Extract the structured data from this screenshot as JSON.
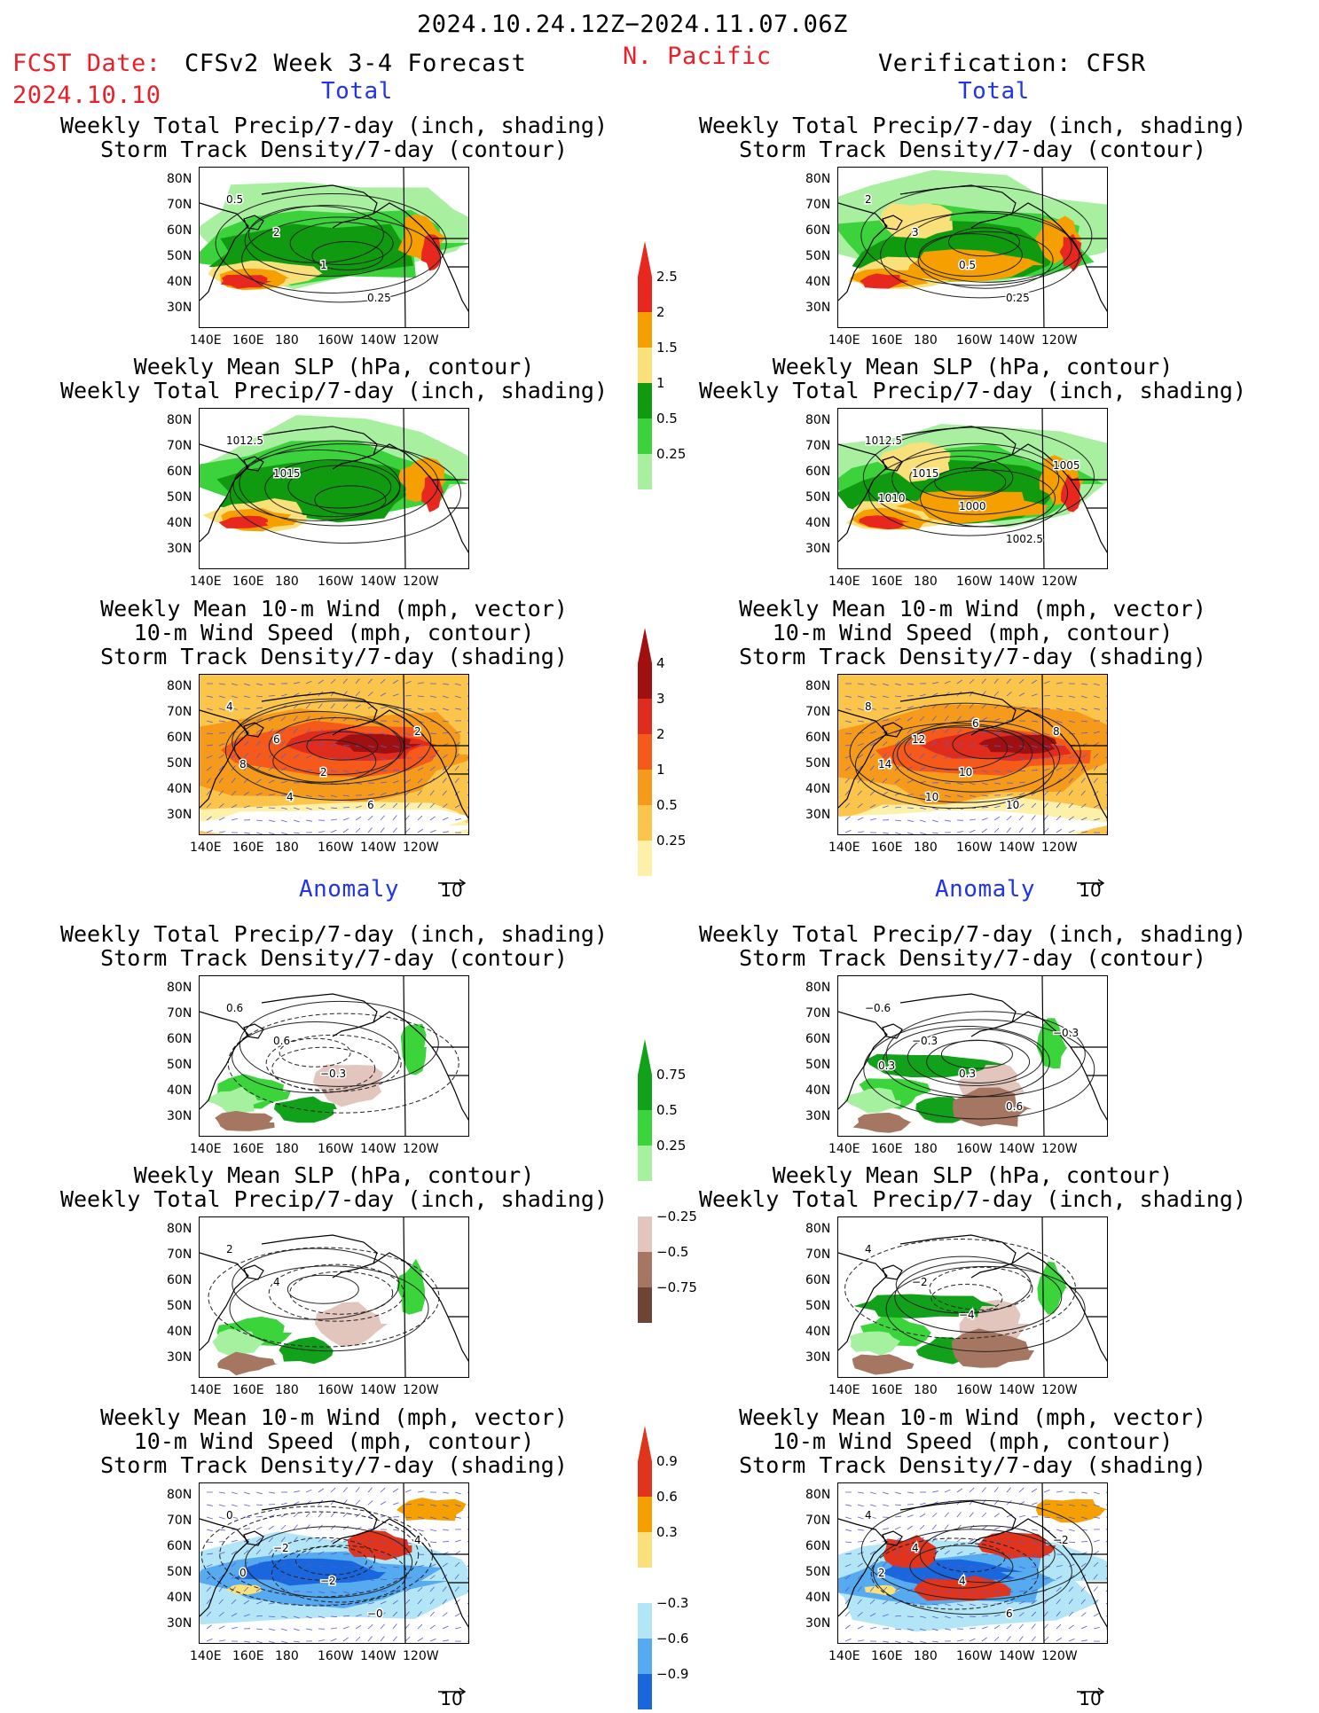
{
  "header": {
    "period": "2024.10.24.12Z−2024.11.07.06Z",
    "fcst_date_label": "FCST Date:",
    "fcst_date_value": "2024.10.10",
    "forecast_title": "CFSv2 Week 3-4 Forecast",
    "region": "N. Pacific",
    "verification": "Verification: CFSR"
  },
  "sections": {
    "total": "Total",
    "anomaly": "Anomaly"
  },
  "titles": {
    "precip_storm": [
      "Weekly Total Precip/7-day (inch, shading)",
      "Storm Track Density/7-day (contour)"
    ],
    "slp_precip": [
      "Weekly Mean SLP (hPa, contour)",
      "Weekly Total Precip/7-day (inch, shading)"
    ],
    "wind_storm": [
      "Weekly Mean 10-m Wind (mph, vector)",
      "10-m Wind Speed (mph, contour)",
      "Storm Track Density/7-day (shading)"
    ]
  },
  "axes": {
    "lat_ticks": [
      "80N",
      "70N",
      "60N",
      "50N",
      "40N",
      "30N"
    ],
    "lon_ticks": [
      "140E",
      "160E",
      "180",
      "160W",
      "140W",
      "120W"
    ]
  },
  "colorbars": {
    "precip_total": [
      "2.5",
      "2",
      "1.5",
      "1",
      "0.5",
      "0.25"
    ],
    "storm_total": [
      "4",
      "3",
      "2",
      "1",
      "0.5",
      "0.25"
    ],
    "precip_anom": [
      "0.75",
      "0.5",
      "0.25",
      "−0.25",
      "−0.5",
      "−0.75"
    ],
    "storm_anom": [
      "0.9",
      "0.6",
      "0.3",
      "−0.3",
      "−0.6",
      "−0.9"
    ],
    "colors": {
      "precip": [
        "#e8281e",
        "#f5a000",
        "#fae07a",
        "#0f9a10",
        "#3cd23c",
        "#a8f0a0"
      ],
      "storm": [
        "#a01010",
        "#e02c1c",
        "#f55a1a",
        "#f59a1a",
        "#fbc44a",
        "#fdf0a8"
      ],
      "anom_precip_pos": [
        "#11a11a",
        "#3bd43b",
        "#a6f19f"
      ],
      "anom_precip_neg": [
        "#e2c6bd",
        "#a57662",
        "#6e4534"
      ],
      "anom_storm_pos": [
        "#e0341c",
        "#f5a000",
        "#fae07a"
      ],
      "anom_storm_neg": [
        "#b2e6f7",
        "#55aaf0",
        "#1a66dd"
      ]
    }
  },
  "reference_vector": "10",
  "contour_labels": {
    "fc_precip_storm": [
      "0.5",
      "2",
      "1",
      "0.25"
    ],
    "ob_precip_storm": [
      "2",
      "3",
      "0.5",
      "0.25"
    ],
    "fc_slp": [
      "1012.5",
      "1015"
    ],
    "ob_slp": [
      "1012.5",
      "1015",
      "1000",
      "1002.5",
      "1005",
      "1010"
    ],
    "fc_wind": [
      "4",
      "6",
      "2",
      "6",
      "2",
      "8",
      "4"
    ],
    "ob_wind": [
      "8",
      "12",
      "10",
      "10",
      "8",
      "14",
      "10",
      "6"
    ],
    "fc_anom_precip": [
      "0.6",
      "0.6",
      "−0.3"
    ],
    "ob_anom_precip": [
      "−0.6",
      "−0.3",
      "0.3",
      "0.6",
      "−0.3",
      "0.3"
    ],
    "fc_anom_slp": [
      "2",
      "4"
    ],
    "ob_anom_slp": [
      "4",
      "−2",
      "−4"
    ],
    "fc_anom_wind": [
      "0",
      "−2",
      "−2",
      "−0",
      "4",
      "0"
    ],
    "ob_anom_wind": [
      "4",
      "4",
      "4",
      "6",
      "−2",
      "2"
    ]
  }
}
